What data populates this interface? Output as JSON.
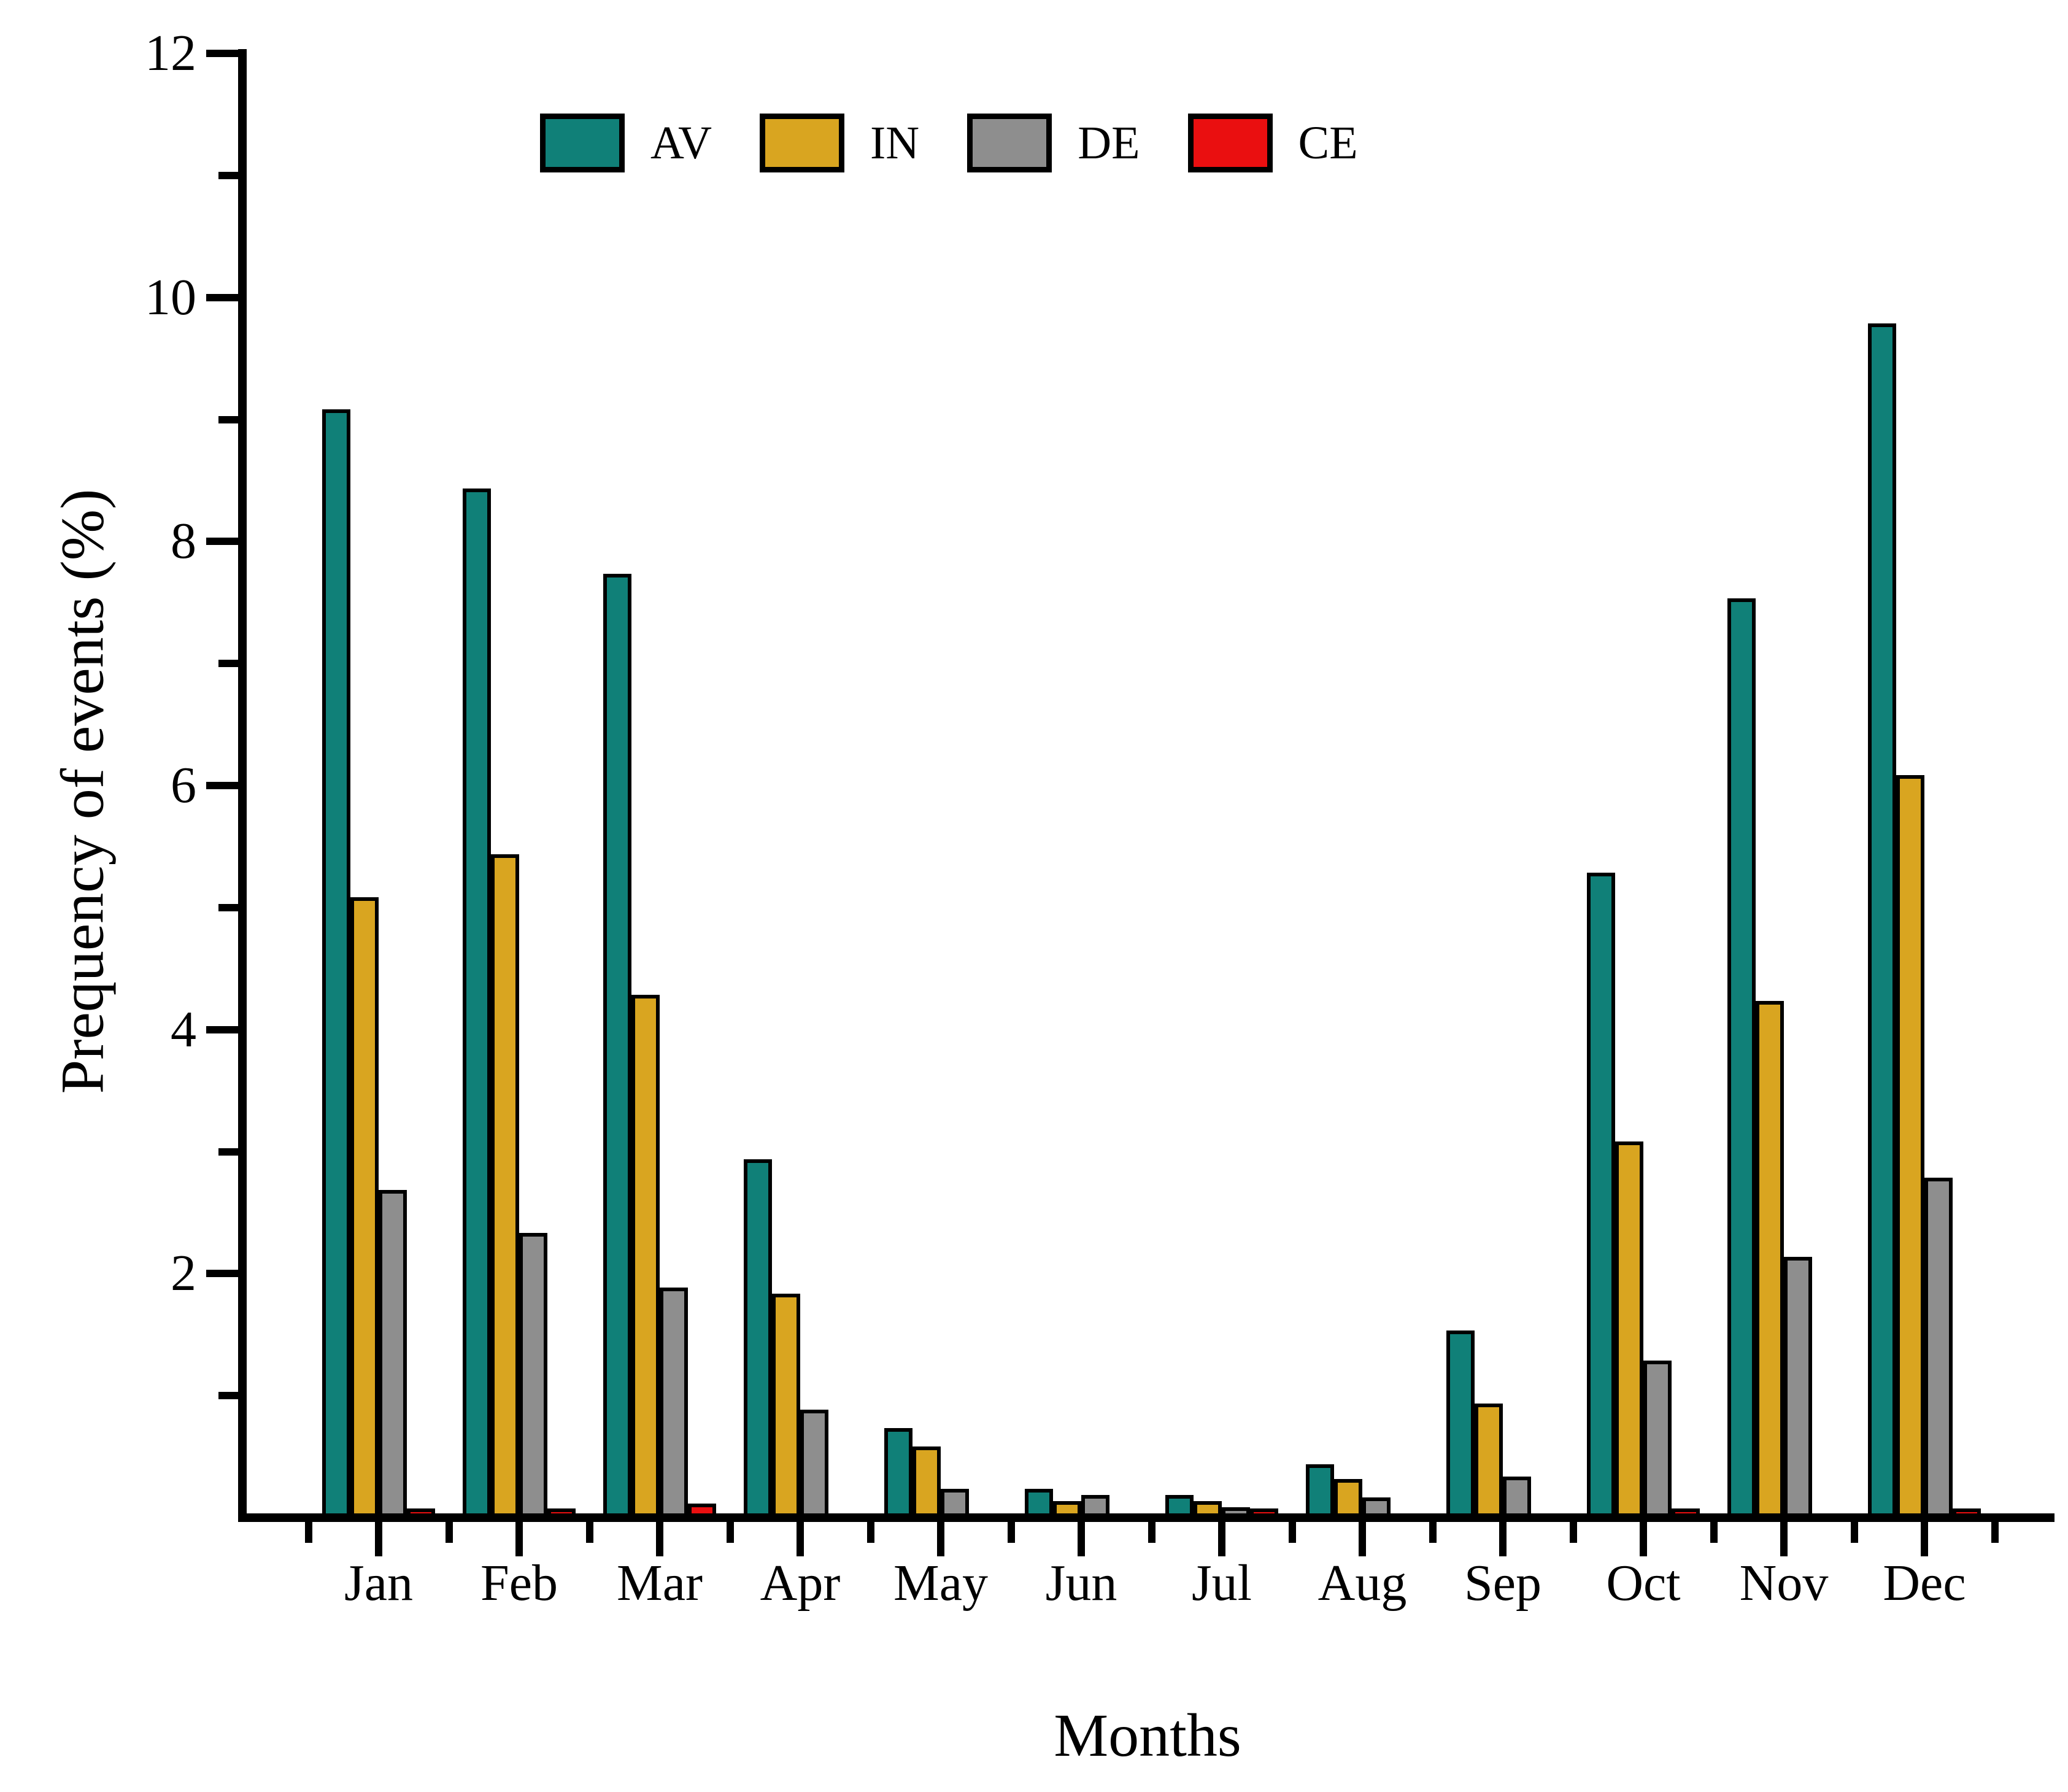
{
  "figure": {
    "y_axis_label": "Prequency of events (%)",
    "x_axis_label": "Months",
    "y_tick_labels": [
      "2",
      "4",
      "6",
      "8",
      "10",
      "12"
    ],
    "legend": [
      {
        "label": "AV",
        "color": "#108078"
      },
      {
        "label": "IN",
        "color": "#d9a520"
      },
      {
        "label": "DE",
        "color": "#8e8e8e"
      },
      {
        "label": "CE",
        "color": "#ea0f10"
      }
    ]
  },
  "chart_data": {
    "type": "bar",
    "title": "",
    "xlabel": "Months",
    "ylabel": "Prequency of events (%)",
    "ylim": [
      0,
      12
    ],
    "y_major_step": 2,
    "y_minor_step": 1,
    "grid": false,
    "legend_position": "top-center",
    "categories": [
      "Jan",
      "Feb",
      "Mar",
      "Apr",
      "May",
      "Jun",
      "Jul",
      "Aug",
      "Sep",
      "Oct",
      "Nov",
      "Dec"
    ],
    "series": [
      {
        "name": "AV",
        "color": "#108078",
        "values": [
          9.05,
          8.4,
          7.7,
          2.9,
          0.7,
          0.2,
          0.15,
          0.4,
          1.5,
          5.25,
          7.5,
          9.75
        ]
      },
      {
        "name": "IN",
        "color": "#d9a520",
        "values": [
          5.05,
          5.4,
          4.25,
          1.8,
          0.55,
          0.1,
          0.1,
          0.28,
          0.9,
          3.05,
          4.2,
          6.05
        ]
      },
      {
        "name": "DE",
        "color": "#8e8e8e",
        "values": [
          2.65,
          2.3,
          1.85,
          0.85,
          0.2,
          0.15,
          0.05,
          0.13,
          0.3,
          1.25,
          2.1,
          2.75
        ]
      },
      {
        "name": "CE",
        "color": "#ea0f10",
        "values": [
          0.04,
          0.03,
          0.08,
          0,
          0,
          0,
          0.02,
          0,
          0,
          0.03,
          0,
          0.04
        ]
      }
    ]
  }
}
